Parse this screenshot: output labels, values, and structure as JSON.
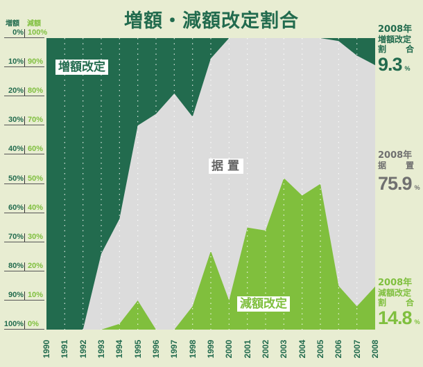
{
  "title": "増額・減額改定割合",
  "axis_headers": {
    "increase": "増額",
    "decrease": "減額"
  },
  "y_ticks": [
    {
      "inc": "0%",
      "dec": "100%"
    },
    {
      "inc": "10%",
      "dec": "90%"
    },
    {
      "inc": "20%",
      "dec": "80%"
    },
    {
      "inc": "30%",
      "dec": "70%"
    },
    {
      "inc": "40%",
      "dec": "60%"
    },
    {
      "inc": "50%",
      "dec": "50%"
    },
    {
      "inc": "60%",
      "dec": "40%"
    },
    {
      "inc": "70%",
      "dec": "30%"
    },
    {
      "inc": "80%",
      "dec": "20%"
    },
    {
      "inc": "90%",
      "dec": "10%"
    },
    {
      "inc": "100%",
      "dec": "0%"
    }
  ],
  "area_labels": {
    "increase": "増額改定",
    "unchanged": "据置",
    "decrease": "減額改定"
  },
  "side_panels": {
    "increase": {
      "year": "2008年",
      "name": "増額改定",
      "name2a": "割",
      "name2b": "合",
      "value": "9.3",
      "unit": "%"
    },
    "unchanged": {
      "year": "2008年",
      "name2a": "据",
      "name2b": "置",
      "value": "75.9",
      "unit": "%"
    },
    "decrease": {
      "year": "2008年",
      "name": "減額改定",
      "name2a": "割",
      "name2b": "合",
      "value": "14.8",
      "unit": "%"
    }
  },
  "colors": {
    "increase": "#226b4e",
    "unchanged": "#dcdcdc",
    "decrease": "#80bf3d",
    "background": "#e8edd2"
  },
  "chart_data": {
    "type": "area",
    "title": "増額・減額改定割合",
    "xlabel": "",
    "ylabel": "",
    "ylim": [
      0,
      100
    ],
    "stacked": true,
    "categories": [
      "1990",
      "1991",
      "1992",
      "1993",
      "1994",
      "1995",
      "1996",
      "1997",
      "1998",
      "1999",
      "2000",
      "2001",
      "2002",
      "2003",
      "2004",
      "2005",
      "2006",
      "2007",
      "2008"
    ],
    "series": [
      {
        "name": "増額改定",
        "values": [
          100,
          100,
          100,
          74,
          62,
          30,
          26,
          19,
          27,
          7,
          0,
          0,
          0,
          0,
          0,
          0,
          1,
          6,
          9.3
        ]
      },
      {
        "name": "据置",
        "values": [
          0,
          0,
          0,
          26,
          36,
          60,
          74,
          81,
          65,
          66,
          90,
          65,
          66,
          48,
          54,
          50,
          84,
          86,
          75.9
        ]
      },
      {
        "name": "減額改定",
        "values": [
          0,
          0,
          0,
          0,
          2,
          10,
          0,
          0,
          8,
          27,
          10,
          35,
          34,
          52,
          46,
          50,
          15,
          8,
          14.8
        ]
      }
    ],
    "grid": "vertical dotted lines at each year",
    "legend": "inline area labels; 2008 values annotated on right side"
  }
}
